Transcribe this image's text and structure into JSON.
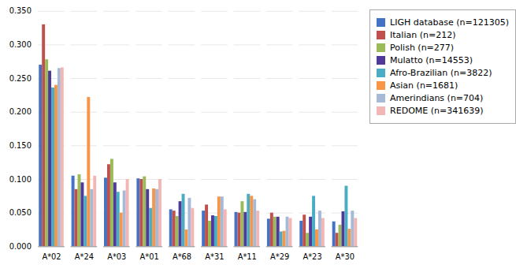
{
  "chart_data": {
    "type": "bar",
    "categories": [
      "A*02",
      "A*24",
      "A*03",
      "A*01",
      "A*68",
      "A*31",
      "A*11",
      "A*29",
      "A*23",
      "A*30"
    ],
    "series": [
      {
        "name": "LIGH database (n=121305)",
        "color": "#4472C4",
        "values": [
          0.27,
          0.105,
          0.102,
          0.101,
          0.055,
          0.053,
          0.051,
          0.041,
          0.038,
          0.037
        ]
      },
      {
        "name": "Italian (n=212)",
        "color": "#C0504D",
        "values": [
          0.33,
          0.085,
          0.122,
          0.1,
          0.053,
          0.062,
          0.05,
          0.05,
          0.047,
          0.02
        ]
      },
      {
        "name": "Polish (n=277)",
        "color": "#9BBB59",
        "values": [
          0.278,
          0.107,
          0.13,
          0.104,
          0.045,
          0.038,
          0.067,
          0.044,
          0.02,
          0.032
        ]
      },
      {
        "name": "Mulatto (n=14553)",
        "color": "#4F3999",
        "values": [
          0.261,
          0.095,
          0.095,
          0.085,
          0.067,
          0.046,
          0.051,
          0.044,
          0.044,
          0.052
        ]
      },
      {
        "name": "Afro-Brazilian (n=3822)",
        "color": "#4BACC6",
        "values": [
          0.236,
          0.075,
          0.081,
          0.057,
          0.078,
          0.045,
          0.078,
          0.022,
          0.075,
          0.09
        ]
      },
      {
        "name": "Asian (n=1681)",
        "color": "#F79646",
        "values": [
          0.24,
          0.222,
          0.05,
          0.086,
          0.025,
          0.074,
          0.075,
          0.023,
          0.025,
          0.026
        ]
      },
      {
        "name": "Amerindians (n=704)",
        "color": "#A6B9D7",
        "values": [
          0.265,
          0.085,
          0.083,
          0.085,
          0.072,
          0.074,
          0.07,
          0.044,
          0.053,
          0.053
        ]
      },
      {
        "name": "REDOME (n=341639)",
        "color": "#F2B7B5",
        "values": [
          0.266,
          0.105,
          0.1,
          0.1,
          0.057,
          0.055,
          0.053,
          0.042,
          0.042,
          0.042
        ]
      }
    ],
    "ylim": [
      0.0,
      0.35
    ],
    "yticks": [
      {
        "value": 0.0,
        "label": "0.000"
      },
      {
        "value": 0.05,
        "label": "0.050"
      },
      {
        "value": 0.1,
        "label": "0.100"
      },
      {
        "value": 0.15,
        "label": "0.150"
      },
      {
        "value": 0.2,
        "label": "0.200"
      },
      {
        "value": 0.25,
        "label": "0.250"
      },
      {
        "value": 0.3,
        "label": "0.300"
      },
      {
        "value": 0.35,
        "label": "0.350"
      }
    ],
    "grid": true,
    "legend": "right"
  }
}
